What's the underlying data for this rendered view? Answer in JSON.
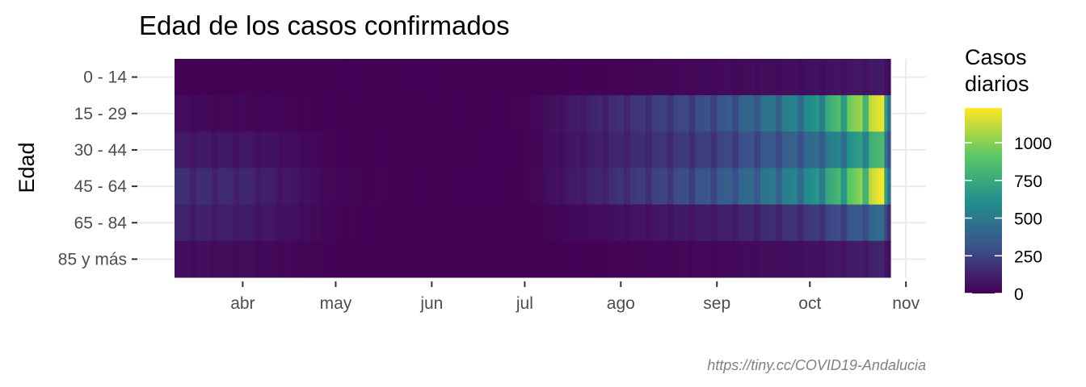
{
  "chart_data": {
    "type": "heatmap",
    "title": "Edad de los casos confirmados",
    "xlabel": "",
    "ylabel": "Edad",
    "x_ticks": [
      "abr",
      "may",
      "jun",
      "jul",
      "ago",
      "sep",
      "oct",
      "nov"
    ],
    "x_range": [
      "2020-03-10",
      "2020-10-27"
    ],
    "categories": [
      "0 - 14",
      "15 - 29",
      "30 - 44",
      "45 - 64",
      "65 - 84",
      "85 y más"
    ],
    "legend": {
      "title": [
        "Casos",
        "diarios"
      ],
      "ticks": [
        0,
        250,
        500,
        750,
        1000
      ],
      "range": [
        0,
        1230
      ],
      "colors": [
        "#440154",
        "#3b528b",
        "#21908d",
        "#5dc863",
        "#fde725"
      ]
    },
    "series": [
      {
        "name": "0 - 14",
        "values": [
          [
            "2020-03-10",
            4
          ],
          [
            "2020-04-01",
            6
          ],
          [
            "2020-05-01",
            2
          ],
          [
            "2020-06-01",
            1
          ],
          [
            "2020-07-01",
            3
          ],
          [
            "2020-08-01",
            15
          ],
          [
            "2020-09-01",
            35
          ],
          [
            "2020-10-01",
            55
          ],
          [
            "2020-10-15",
            80
          ],
          [
            "2020-10-24",
            100
          ]
        ]
      },
      {
        "name": "15 - 29",
        "values": [
          [
            "2020-03-10",
            40
          ],
          [
            "2020-04-01",
            25
          ],
          [
            "2020-05-01",
            8
          ],
          [
            "2020-06-01",
            6
          ],
          [
            "2020-07-01",
            15
          ],
          [
            "2020-08-01",
            180
          ],
          [
            "2020-09-01",
            320
          ],
          [
            "2020-10-01",
            600
          ],
          [
            "2020-10-15",
            1000
          ],
          [
            "2020-10-24",
            1200
          ]
        ]
      },
      {
        "name": "30 - 44",
        "values": [
          [
            "2020-03-10",
            100
          ],
          [
            "2020-04-01",
            85
          ],
          [
            "2020-05-01",
            12
          ],
          [
            "2020-06-01",
            6
          ],
          [
            "2020-07-01",
            10
          ],
          [
            "2020-08-01",
            150
          ],
          [
            "2020-09-01",
            250
          ],
          [
            "2020-10-01",
            420
          ],
          [
            "2020-10-15",
            650
          ],
          [
            "2020-10-24",
            850
          ]
        ]
      },
      {
        "name": "45 - 64",
        "values": [
          [
            "2020-03-10",
            180
          ],
          [
            "2020-04-01",
            150
          ],
          [
            "2020-05-01",
            20
          ],
          [
            "2020-06-01",
            8
          ],
          [
            "2020-07-01",
            10
          ],
          [
            "2020-08-01",
            190
          ],
          [
            "2020-09-01",
            350
          ],
          [
            "2020-10-01",
            600
          ],
          [
            "2020-10-15",
            950
          ],
          [
            "2020-10-24",
            1230
          ]
        ]
      },
      {
        "name": "65 - 84",
        "values": [
          [
            "2020-03-10",
            130
          ],
          [
            "2020-04-01",
            105
          ],
          [
            "2020-05-01",
            15
          ],
          [
            "2020-06-01",
            4
          ],
          [
            "2020-07-01",
            5
          ],
          [
            "2020-08-01",
            60
          ],
          [
            "2020-09-01",
            110
          ],
          [
            "2020-10-01",
            210
          ],
          [
            "2020-10-15",
            340
          ],
          [
            "2020-10-24",
            450
          ]
        ]
      },
      {
        "name": "85 y más",
        "values": [
          [
            "2020-03-10",
            50
          ],
          [
            "2020-04-01",
            45
          ],
          [
            "2020-05-01",
            8
          ],
          [
            "2020-06-01",
            2
          ],
          [
            "2020-07-01",
            2
          ],
          [
            "2020-08-01",
            15
          ],
          [
            "2020-09-01",
            30
          ],
          [
            "2020-10-01",
            60
          ],
          [
            "2020-10-15",
            100
          ],
          [
            "2020-10-24",
            140
          ]
        ]
      }
    ],
    "caption": "https://tiny.cc/COVID19-Andalucia",
    "grid": true,
    "legend_position": "right"
  }
}
